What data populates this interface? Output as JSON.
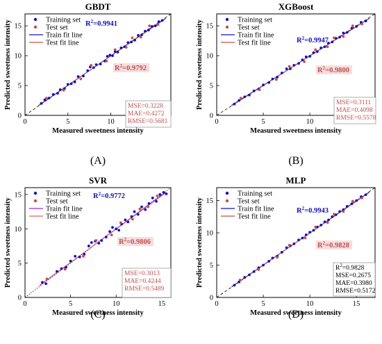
{
  "chart_data": [
    {
      "type": "scatter",
      "title": "GBDT",
      "xlabel": "Measured sweetness intensity",
      "ylabel": "Predicted sweetness intensity",
      "xlim": [
        0,
        17
      ],
      "ylim": [
        0,
        17
      ],
      "xticks": [
        0,
        5,
        10,
        15
      ],
      "yticks": [
        0,
        5,
        10,
        15
      ],
      "panel_label": "(A)",
      "legend": [
        "Training set",
        "Test set",
        "Train fit line",
        "Test fit line"
      ],
      "legend_position": "top-left",
      "r2_train": "R²=0.9941",
      "r2_test": "R²=0.9792",
      "metrics": [
        "MSE=0.3228",
        "MAE=0.4272",
        "RMSE=0.5681"
      ],
      "metrics_color": "#c0504d",
      "metrics_position": "bottom-right",
      "series": [
        {
          "name": "Training set",
          "color": "#1010c8",
          "points": [
            [
              1.9,
              2.0
            ],
            [
              2.3,
              2.6
            ],
            [
              2.8,
              2.9
            ],
            [
              3.3,
              3.5
            ],
            [
              3.8,
              3.7
            ],
            [
              4.1,
              4.3
            ],
            [
              4.6,
              4.5
            ],
            [
              5.0,
              5.2
            ],
            [
              5.4,
              5.3
            ],
            [
              5.8,
              5.6
            ],
            [
              6.2,
              6.5
            ],
            [
              6.8,
              6.6
            ],
            [
              7.3,
              7.5
            ],
            [
              7.6,
              8.1
            ],
            [
              8.0,
              8.0
            ],
            [
              8.3,
              8.5
            ],
            [
              8.8,
              8.6
            ],
            [
              9.3,
              9.1
            ],
            [
              9.6,
              9.9
            ],
            [
              9.9,
              10.1
            ],
            [
              10.2,
              10.0
            ],
            [
              10.5,
              10.7
            ],
            [
              10.8,
              10.6
            ],
            [
              11.2,
              11.3
            ],
            [
              11.6,
              11.5
            ],
            [
              12.0,
              12.2
            ],
            [
              12.4,
              12.3
            ],
            [
              12.8,
              12.6
            ],
            [
              13.2,
              13.4
            ],
            [
              13.6,
              13.5
            ],
            [
              14.0,
              14.1
            ],
            [
              14.4,
              14.3
            ],
            [
              14.8,
              14.9
            ],
            [
              15.2,
              15.0
            ],
            [
              15.6,
              15.7
            ],
            [
              16.0,
              15.9
            ]
          ]
        },
        {
          "name": "Test set",
          "color": "#c0504d",
          "points": [
            [
              2.5,
              2.9
            ],
            [
              4.5,
              4.2
            ],
            [
              6.5,
              6.1
            ],
            [
              7.7,
              8.4
            ],
            [
              9.5,
              9.1
            ],
            [
              10.5,
              11.0
            ],
            [
              11.8,
              11.4
            ],
            [
              12.5,
              13.0
            ],
            [
              13.5,
              13.1
            ],
            [
              14.5,
              15.0
            ],
            [
              15.5,
              15.2
            ]
          ]
        }
      ],
      "fit_lines": [
        {
          "name": "Train fit line",
          "color": "#1010c8",
          "slope": 0.99,
          "intercept": 0.06
        },
        {
          "name": "Test fit line",
          "color": "#c0504d",
          "slope": 0.98,
          "intercept": 0.15
        }
      ]
    },
    {
      "type": "scatter",
      "title": "XGBoost",
      "xlabel": "Measured sweetness intensity",
      "ylabel": "Predicted sweetness intensity",
      "xlim": [
        0,
        17
      ],
      "ylim": [
        0,
        17
      ],
      "xticks": [
        0,
        5,
        10,
        15
      ],
      "yticks": [
        0,
        5,
        10,
        15
      ],
      "panel_label": "(B)",
      "legend": [
        "Training set",
        "Test set",
        "Train fit line",
        "Test fit line"
      ],
      "legend_position": "top-left",
      "r2_train": "R²=0.9947",
      "r2_test": "R²=0.9800",
      "metrics": [
        "MSE=0.3111",
        "MAE=0.4098",
        "RMSE=0.5578"
      ],
      "metrics_color": "#c0504d",
      "metrics_position": "bottom-right",
      "series": [
        {
          "name": "Training set",
          "color": "#1010c8",
          "points": [
            [
              1.9,
              1.9
            ],
            [
              2.4,
              2.5
            ],
            [
              3.0,
              3.1
            ],
            [
              3.5,
              3.4
            ],
            [
              4.0,
              4.1
            ],
            [
              4.5,
              4.4
            ],
            [
              5.0,
              5.1
            ],
            [
              5.6,
              5.5
            ],
            [
              6.0,
              6.1
            ],
            [
              6.5,
              6.4
            ],
            [
              7.0,
              7.1
            ],
            [
              7.5,
              7.8
            ],
            [
              7.9,
              7.8
            ],
            [
              8.3,
              8.4
            ],
            [
              8.8,
              8.7
            ],
            [
              9.2,
              9.3
            ],
            [
              9.6,
              9.8
            ],
            [
              10.0,
              9.9
            ],
            [
              10.4,
              10.5
            ],
            [
              10.8,
              10.7
            ],
            [
              11.2,
              11.3
            ],
            [
              11.6,
              11.5
            ],
            [
              12.0,
              12.1
            ],
            [
              12.4,
              12.3
            ],
            [
              12.8,
              12.9
            ],
            [
              13.2,
              13.1
            ],
            [
              13.6,
              13.8
            ],
            [
              14.0,
              13.9
            ],
            [
              14.5,
              14.6
            ],
            [
              15.0,
              14.9
            ],
            [
              15.5,
              15.6
            ],
            [
              16.0,
              15.8
            ]
          ]
        },
        {
          "name": "Test set",
          "color": "#c0504d",
          "points": [
            [
              2.6,
              2.9
            ],
            [
              4.6,
              4.3
            ],
            [
              6.4,
              6.0
            ],
            [
              7.8,
              8.2
            ],
            [
              9.4,
              9.0
            ],
            [
              10.6,
              11.0
            ],
            [
              11.9,
              11.5
            ],
            [
              12.6,
              13.0
            ],
            [
              13.6,
              13.2
            ],
            [
              14.6,
              15.0
            ],
            [
              15.6,
              15.3
            ]
          ]
        }
      ],
      "fit_lines": [
        {
          "name": "Train fit line",
          "color": "#1010c8",
          "slope": 0.99,
          "intercept": 0.05
        },
        {
          "name": "Test fit line",
          "color": "#c0504d",
          "slope": 0.98,
          "intercept": 0.16
        }
      ]
    },
    {
      "type": "scatter",
      "title": "SVR",
      "xlabel": "Measured sweetness intensity",
      "ylabel": "Predicted sweetness intensity",
      "xlim": [
        0,
        16
      ],
      "ylim": [
        0,
        16
      ],
      "xticks": [
        0,
        5,
        10,
        15
      ],
      "yticks": [
        0,
        5,
        10,
        15
      ],
      "panel_label": "(C)",
      "legend": [
        "Training set",
        "Test set",
        "Train fit line",
        "Test fit line"
      ],
      "legend_position": "top-left",
      "r2_train": "R²=0.9772",
      "r2_test": "R²=0.9806",
      "metrics": [
        "MSE=0.3013",
        "MAE=0.4244",
        "RMSE=0.5489"
      ],
      "metrics_color": "#c0504d",
      "metrics_position": "bottom-right",
      "series": [
        {
          "name": "Training set",
          "color": "#1010c8",
          "points": [
            [
              1.9,
              2.2
            ],
            [
              2.3,
              2.0
            ],
            [
              3.5,
              3.8
            ],
            [
              4.0,
              4.2
            ],
            [
              4.5,
              4.4
            ],
            [
              5.0,
              5.3
            ],
            [
              5.5,
              6.0
            ],
            [
              6.0,
              5.9
            ],
            [
              6.5,
              6.3
            ],
            [
              7.0,
              7.5
            ],
            [
              7.3,
              8.0
            ],
            [
              7.7,
              8.2
            ],
            [
              8.1,
              7.9
            ],
            [
              8.4,
              8.3
            ],
            [
              8.9,
              8.8
            ],
            [
              9.3,
              9.6
            ],
            [
              9.6,
              10.2
            ],
            [
              10.0,
              10.0
            ],
            [
              10.3,
              9.8
            ],
            [
              10.6,
              10.7
            ],
            [
              11.0,
              11.3
            ],
            [
              11.3,
              11.0
            ],
            [
              11.7,
              11.8
            ],
            [
              12.0,
              12.5
            ],
            [
              12.4,
              12.1
            ],
            [
              12.8,
              13.2
            ],
            [
              13.2,
              12.8
            ],
            [
              13.6,
              13.7
            ],
            [
              14.0,
              14.5
            ],
            [
              14.4,
              14.0
            ],
            [
              14.8,
              15.0
            ],
            [
              15.2,
              15.3
            ],
            [
              15.5,
              15.1
            ]
          ]
        },
        {
          "name": "Test set",
          "color": "#c0504d",
          "points": [
            [
              2.4,
              2.7
            ],
            [
              4.4,
              4.1
            ],
            [
              6.4,
              6.0
            ],
            [
              7.8,
              8.3
            ],
            [
              9.5,
              9.1
            ],
            [
              10.5,
              10.9
            ],
            [
              11.8,
              11.4
            ],
            [
              12.6,
              12.9
            ],
            [
              13.5,
              13.2
            ],
            [
              14.5,
              14.8
            ]
          ]
        }
      ],
      "fit_lines": [
        {
          "name": "Train fit line",
          "color": "#8a2be2",
          "slope": 0.98,
          "intercept": 0.2
        },
        {
          "name": "Test fit line",
          "color": "#e06060",
          "slope": 0.97,
          "intercept": 0.25
        }
      ]
    },
    {
      "type": "scatter",
      "title": "MLP",
      "xlabel": "Measured sweetness intensity",
      "ylabel": "Predicted sweetness intensity",
      "xlim": [
        0,
        17
      ],
      "ylim": [
        0,
        17
      ],
      "xticks": [
        0,
        5,
        10,
        15
      ],
      "yticks": [
        0,
        5,
        10,
        15
      ],
      "panel_label": "(D)",
      "legend": [
        "Training set",
        "Test set",
        "Train fit line",
        "Test fit line"
      ],
      "legend_position": "top-left",
      "r2_train": "R²=0.9943",
      "r2_test": "R²=0.9828",
      "metrics": [
        "R²=0.9828",
        "MSE=0.2675",
        "MAE=0.3980",
        "RMSE=0.5172"
      ],
      "metrics_color": "#000000",
      "metrics_position": "bottom-right",
      "series": [
        {
          "name": "Training set",
          "color": "#1010c8",
          "points": [
            [
              1.9,
              1.9
            ],
            [
              2.4,
              2.4
            ],
            [
              3.0,
              3.1
            ],
            [
              3.5,
              3.5
            ],
            [
              4.0,
              4.0
            ],
            [
              4.5,
              4.6
            ],
            [
              5.0,
              5.0
            ],
            [
              5.6,
              5.6
            ],
            [
              6.0,
              6.1
            ],
            [
              6.5,
              6.4
            ],
            [
              7.0,
              7.0
            ],
            [
              7.5,
              7.7
            ],
            [
              7.9,
              8.0
            ],
            [
              8.3,
              8.3
            ],
            [
              8.8,
              8.9
            ],
            [
              9.2,
              9.2
            ],
            [
              9.6,
              9.7
            ],
            [
              10.0,
              10.1
            ],
            [
              10.4,
              10.4
            ],
            [
              10.8,
              10.9
            ],
            [
              11.2,
              11.2
            ],
            [
              11.6,
              11.7
            ],
            [
              12.0,
              12.0
            ],
            [
              12.4,
              12.5
            ],
            [
              12.8,
              12.8
            ],
            [
              13.2,
              13.3
            ],
            [
              13.6,
              13.6
            ],
            [
              14.0,
              14.1
            ],
            [
              14.5,
              14.5
            ],
            [
              15.0,
              15.0
            ],
            [
              15.5,
              15.6
            ],
            [
              16.0,
              15.9
            ]
          ]
        },
        {
          "name": "Test set",
          "color": "#c0504d",
          "points": [
            [
              2.5,
              2.7
            ],
            [
              4.5,
              4.3
            ],
            [
              6.5,
              6.2
            ],
            [
              7.8,
              8.1
            ],
            [
              9.5,
              9.2
            ],
            [
              10.6,
              10.9
            ],
            [
              11.9,
              11.6
            ],
            [
              12.6,
              12.9
            ],
            [
              13.6,
              13.3
            ],
            [
              14.6,
              14.9
            ],
            [
              15.6,
              15.4
            ]
          ]
        }
      ],
      "fit_lines": [
        {
          "name": "Train fit line",
          "color": "#1010c8",
          "slope": 0.995,
          "intercept": 0.03
        },
        {
          "name": "Test fit line",
          "color": "#c0504d",
          "slope": 0.985,
          "intercept": 0.12
        }
      ]
    }
  ]
}
